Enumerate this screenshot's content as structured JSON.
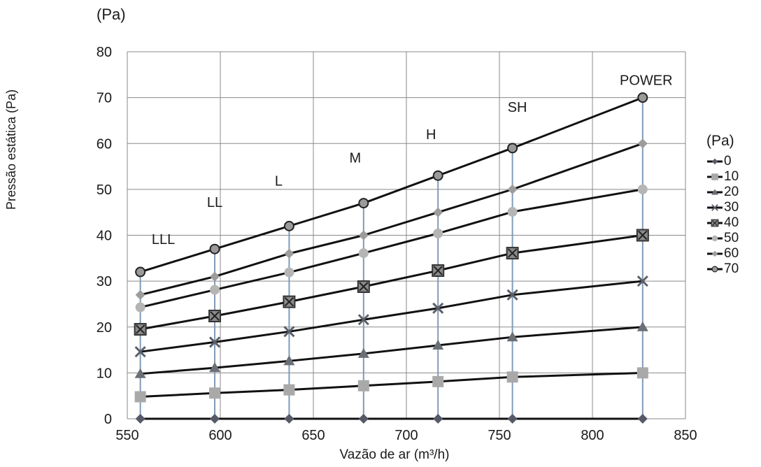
{
  "chart_data": {
    "type": "line",
    "y_unit_label": "(Pa)",
    "xlabel": "Vazão de ar (m³/h)",
    "ylabel": "Pressão estática (Pa)",
    "xlim": [
      550,
      850
    ],
    "ylim": [
      0,
      80
    ],
    "x_ticks": [
      "550",
      "600",
      "650",
      "700",
      "750",
      "800",
      "850"
    ],
    "y_ticks": [
      "0",
      "10",
      "20",
      "30",
      "40",
      "50",
      "60",
      "70",
      "80"
    ],
    "grid": true,
    "x": [
      557,
      597,
      637,
      677,
      717,
      757,
      827
    ],
    "speed_labels": [
      "LLL",
      "LL",
      "L",
      "M",
      "H",
      "SH",
      "POWER"
    ],
    "legend_title": "(Pa)",
    "legend_position": "right",
    "series": [
      {
        "name": "0",
        "marker": "diamond",
        "color": "#555a66",
        "values": [
          0,
          0,
          0,
          0,
          0,
          0,
          0
        ]
      },
      {
        "name": "10",
        "marker": "square",
        "color": "#a9a9a9",
        "values": [
          4.8,
          5.6,
          6.3,
          7.2,
          8.1,
          9.1,
          10
        ]
      },
      {
        "name": "20",
        "marker": "triangle",
        "color": "#6b6f76",
        "values": [
          9.8,
          11.1,
          12.6,
          14.2,
          16.0,
          17.8,
          20
        ]
      },
      {
        "name": "30",
        "marker": "x",
        "color": "#5a5f68",
        "values": [
          14.6,
          16.7,
          19.0,
          21.6,
          24.1,
          27.0,
          30
        ]
      },
      {
        "name": "40",
        "marker": "square-x",
        "color": "#4a4a4a",
        "values": [
          19.5,
          22.4,
          25.5,
          28.8,
          32.3,
          36.1,
          40
        ]
      },
      {
        "name": "50",
        "marker": "circle",
        "color": "#b5b5b5",
        "values": [
          24.3,
          28.1,
          31.9,
          36.1,
          40.4,
          45.1,
          50
        ]
      },
      {
        "name": "60",
        "marker": "diamond",
        "color": "#9c9c9c",
        "values": [
          27.0,
          31.0,
          36.0,
          40.0,
          45.0,
          50.0,
          60
        ]
      },
      {
        "name": "70",
        "marker": "open-circle",
        "color": "#222222",
        "values": [
          32,
          37,
          42,
          47,
          53,
          59,
          70
        ]
      }
    ]
  }
}
